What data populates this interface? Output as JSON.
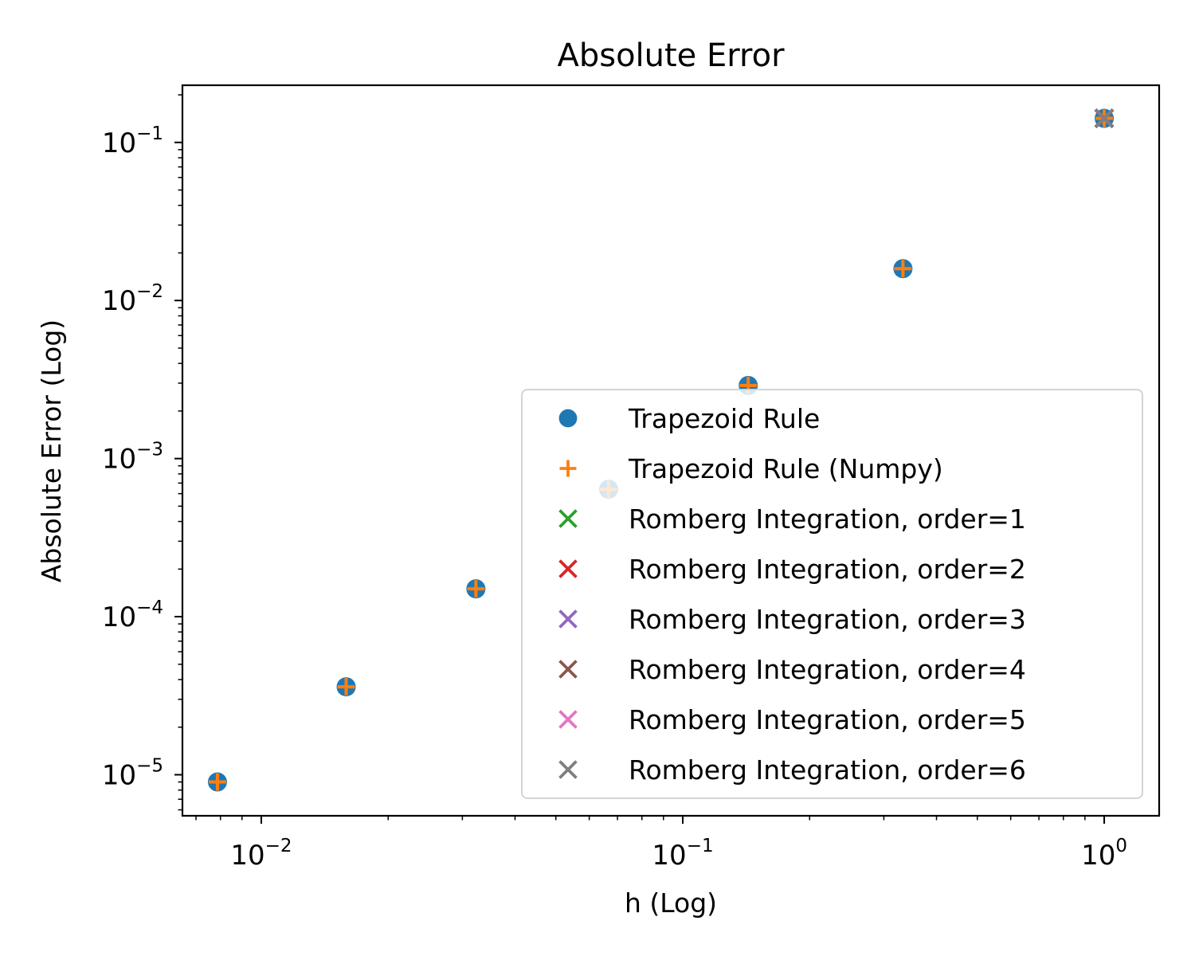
{
  "chart_data": {
    "type": "scatter",
    "title": "Absolute Error",
    "xlabel": "h (Log)",
    "ylabel": "Absolute Error (Log)",
    "xscale": "log",
    "yscale": "log",
    "xlim": [
      0.0065,
      1.35
    ],
    "ylim": [
      5.5e-06,
      0.23
    ],
    "x_ticks": [
      {
        "value": 0.01,
        "base": "10",
        "exp": "−2"
      },
      {
        "value": 0.1,
        "base": "10",
        "exp": "−1"
      },
      {
        "value": 1,
        "base": "10",
        "exp": "0"
      }
    ],
    "y_ticks": [
      {
        "value": 1e-05,
        "base": "10",
        "exp": "−5"
      },
      {
        "value": 0.0001,
        "base": "10",
        "exp": "−4"
      },
      {
        "value": 0.001,
        "base": "10",
        "exp": "−3"
      },
      {
        "value": 0.01,
        "base": "10",
        "exp": "−2"
      },
      {
        "value": 0.1,
        "base": "10",
        "exp": "−1"
      }
    ],
    "grid": false,
    "legend_position": "lower-right",
    "series": [
      {
        "name": "Trapezoid Rule",
        "marker": "circle",
        "color": "#1f77b4",
        "x": [
          1,
          0.333,
          0.143,
          0.0667,
          0.0323,
          0.0159,
          0.00787
        ],
        "y": [
          0.142,
          0.0159,
          0.0029,
          0.00064,
          0.00015,
          3.6e-05,
          9e-06
        ]
      },
      {
        "name": "Trapezoid Rule (Numpy)",
        "marker": "plus",
        "color": "#ff7f0e",
        "x": [
          1,
          0.333,
          0.143,
          0.0667,
          0.0323,
          0.0159,
          0.00787
        ],
        "y": [
          0.142,
          0.0159,
          0.0029,
          0.00064,
          0.00015,
          3.6e-05,
          9e-06
        ]
      },
      {
        "name": "Romberg Integration, order=1",
        "marker": "x",
        "color": "#2ca02c",
        "x": [
          1
        ],
        "y": [
          0.142
        ]
      },
      {
        "name": "Romberg Integration, order=2",
        "marker": "x",
        "color": "#d62728",
        "x": [
          1
        ],
        "y": [
          0.142
        ]
      },
      {
        "name": "Romberg Integration, order=3",
        "marker": "x",
        "color": "#9467bd",
        "x": [
          1
        ],
        "y": [
          0.142
        ]
      },
      {
        "name": "Romberg Integration, order=4",
        "marker": "x",
        "color": "#8c564b",
        "x": [
          1
        ],
        "y": [
          0.142
        ]
      },
      {
        "name": "Romberg Integration, order=5",
        "marker": "x",
        "color": "#e377c2",
        "x": [
          1
        ],
        "y": [
          0.142
        ]
      },
      {
        "name": "Romberg Integration, order=6",
        "marker": "x",
        "color": "#7f7f7f",
        "x": [
          1
        ],
        "y": [
          0.142
        ]
      }
    ]
  }
}
